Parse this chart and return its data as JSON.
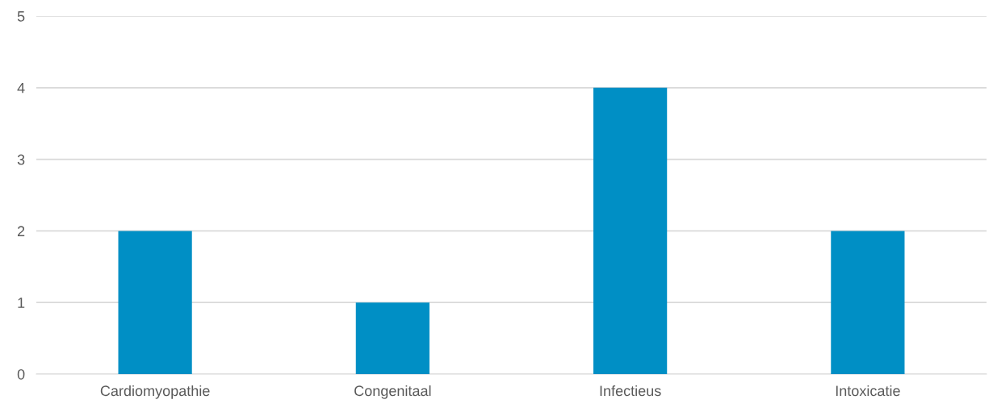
{
  "chart_data": {
    "type": "bar",
    "categories": [
      "Cardiomyopathie",
      "Congenitaal",
      "Infectieus",
      "Intoxicatie"
    ],
    "values": [
      2,
      1,
      4,
      2
    ],
    "color": "#008fc5",
    "ylim": [
      0,
      5
    ],
    "yticks": [
      0,
      1,
      2,
      3,
      4,
      5
    ],
    "grid": "y"
  }
}
